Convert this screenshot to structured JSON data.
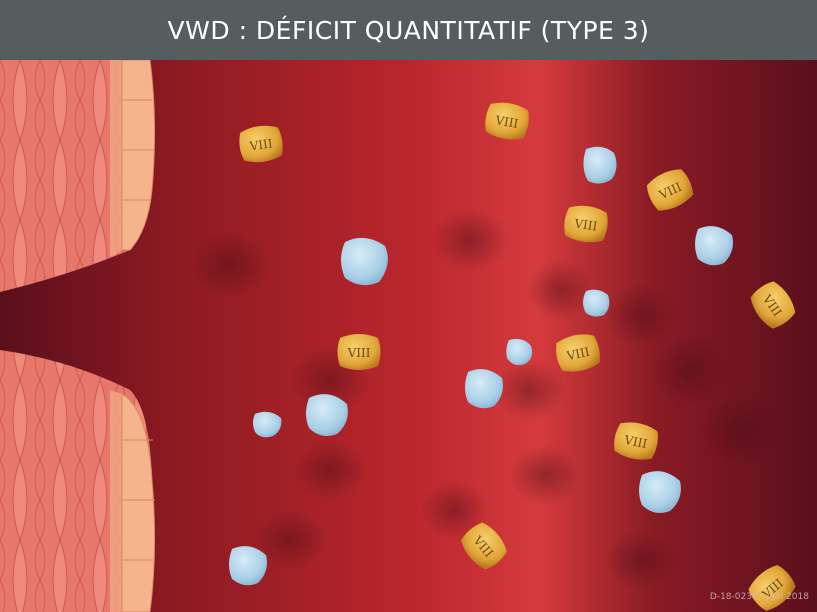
{
  "header": {
    "title": "VWD : DÉFICIT QUANTITATIF (TYPE 3)"
  },
  "factor_label": "VIII",
  "footer": {
    "code": "D-18-0238 - Juin 2018"
  },
  "colors": {
    "header_bg": "#555d5f",
    "vessel_center": "#d33a3c",
    "vessel_dark": "#5a0f1c",
    "factor_viii": "#e1a638",
    "platelet": "#a9cfe6",
    "wall_tissue": "#e7776a"
  }
}
